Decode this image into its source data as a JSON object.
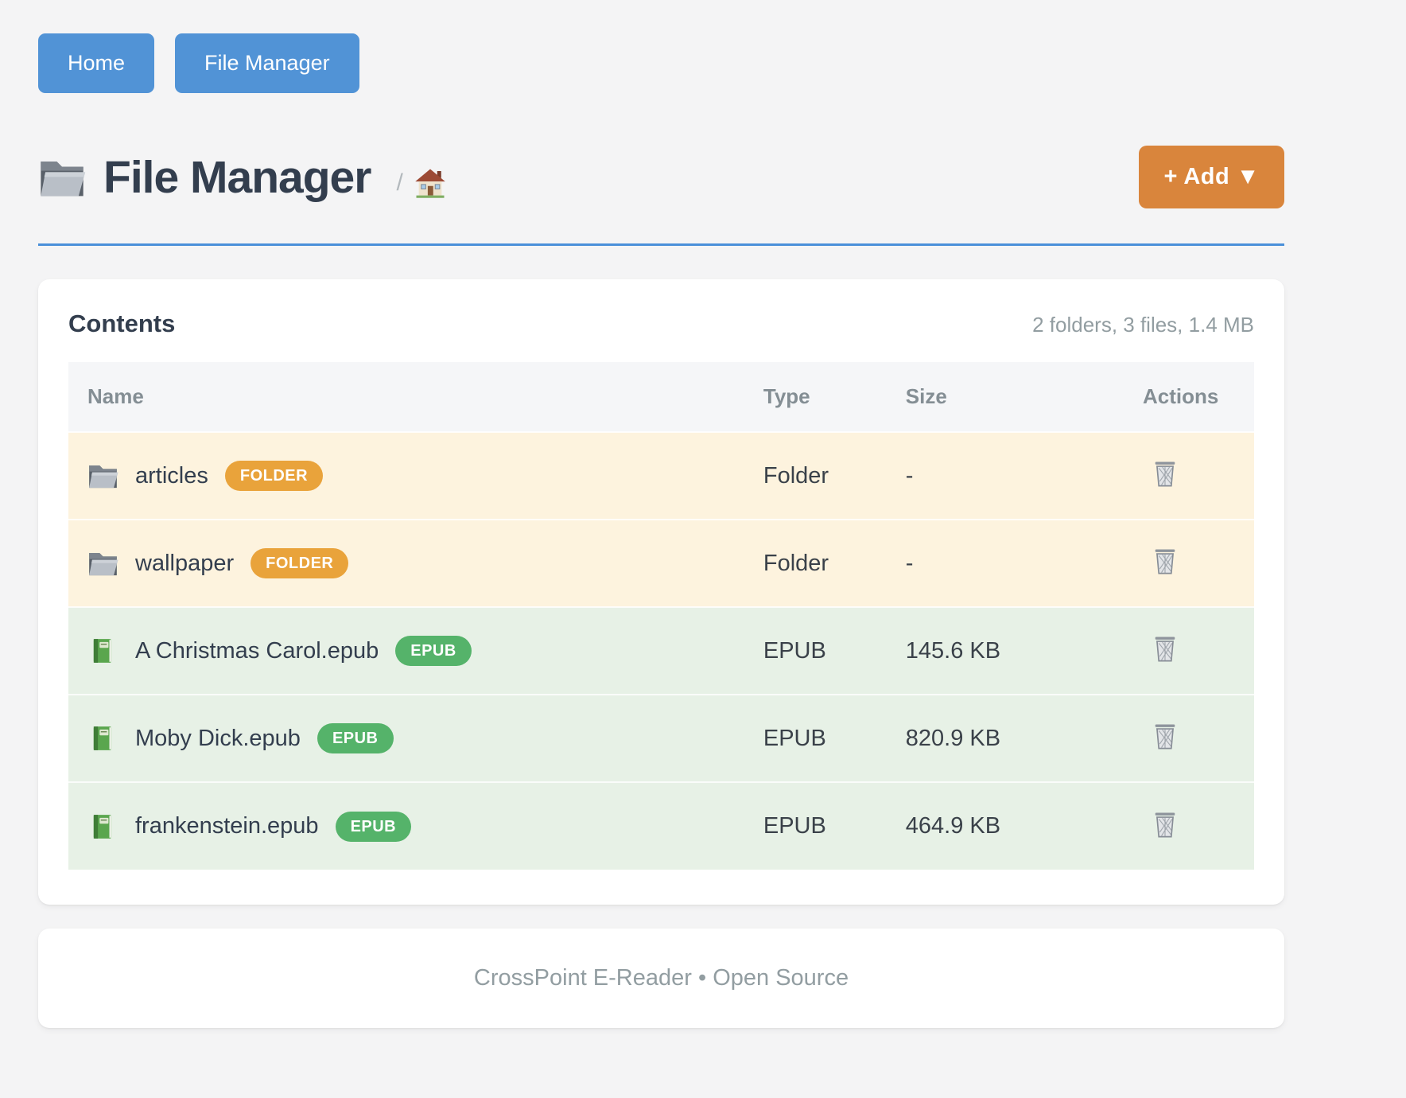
{
  "nav": {
    "home_label": "Home",
    "file_manager_label": "File Manager"
  },
  "header": {
    "title": "File Manager",
    "breadcrumb_separator": "/",
    "add_button_label": "+ Add ▼"
  },
  "contents": {
    "heading": "Contents",
    "summary": "2 folders, 3 files, 1.4 MB",
    "columns": [
      "Name",
      "Type",
      "Size",
      "Actions"
    ],
    "rows": [
      {
        "name": "articles",
        "kind": "folder",
        "badge": "FOLDER",
        "type": "Folder",
        "size": "-",
        "icon": "folder-icon",
        "action_icon": "trash-icon"
      },
      {
        "name": "wallpaper",
        "kind": "folder",
        "badge": "FOLDER",
        "type": "Folder",
        "size": "-",
        "icon": "folder-icon",
        "action_icon": "trash-icon"
      },
      {
        "name": "A Christmas Carol.epub",
        "kind": "epub",
        "badge": "EPUB",
        "type": "EPUB",
        "size": "145.6 KB",
        "icon": "book-icon",
        "action_icon": "trash-icon"
      },
      {
        "name": "Moby Dick.epub",
        "kind": "epub",
        "badge": "EPUB",
        "type": "EPUB",
        "size": "820.9 KB",
        "icon": "book-icon",
        "action_icon": "trash-icon"
      },
      {
        "name": "frankenstein.epub",
        "kind": "epub",
        "badge": "EPUB",
        "type": "EPUB",
        "size": "464.9 KB",
        "icon": "book-icon",
        "action_icon": "trash-icon"
      }
    ]
  },
  "footer": {
    "text": "CrossPoint E-Reader • Open Source"
  },
  "colors": {
    "page_bg": "#f4f4f5",
    "nav_button_blue": "#5193d6",
    "divider_blue": "#4a90d9",
    "title_text": "#333e4e",
    "add_button_orange": "#d9853c",
    "badge_folder_orange": "#e9a33b",
    "badge_epub_green": "#55b36a",
    "row_folder_bg": "#fdf3de",
    "row_epub_bg": "#e7f1e6",
    "header_text_gray": "#848e94",
    "muted_text": "#929da1"
  }
}
